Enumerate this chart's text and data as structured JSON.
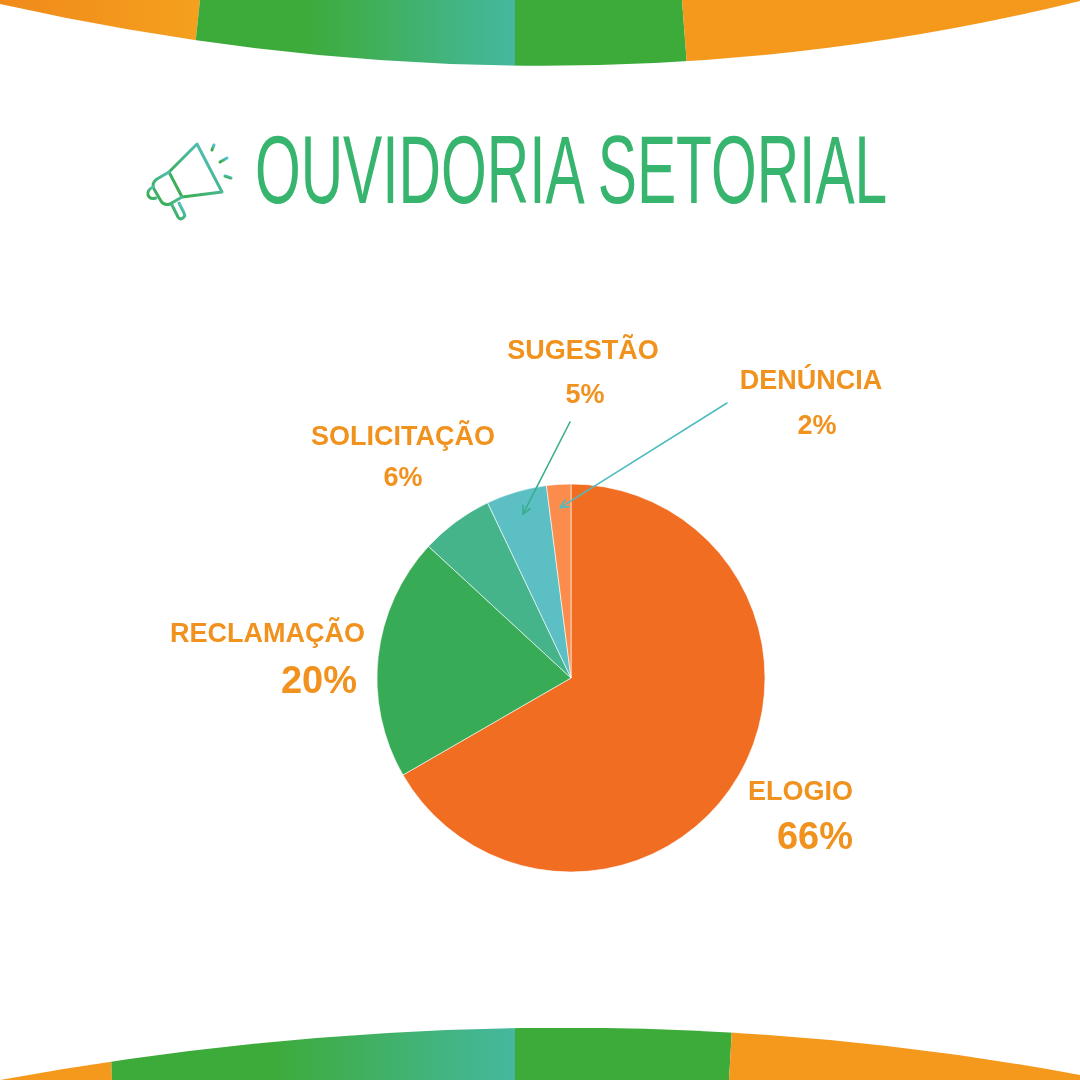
{
  "chart_data": {
    "type": "pie",
    "title": "OUVIDORIA SETORIAL",
    "categories": [
      "ELOGIO",
      "RECLAMAÇÃO",
      "SOLICITAÇÃO",
      "SUGESTÃO",
      "DENÚNCIA"
    ],
    "values": [
      66,
      20,
      6,
      5,
      2
    ],
    "colors": [
      "#f16d22",
      "#37ab56",
      "#45b48a",
      "#5bbfc4",
      "#fc8c4c"
    ],
    "value_labels": [
      "66%",
      "20%",
      "6%",
      "5%",
      "2%"
    ]
  }
}
